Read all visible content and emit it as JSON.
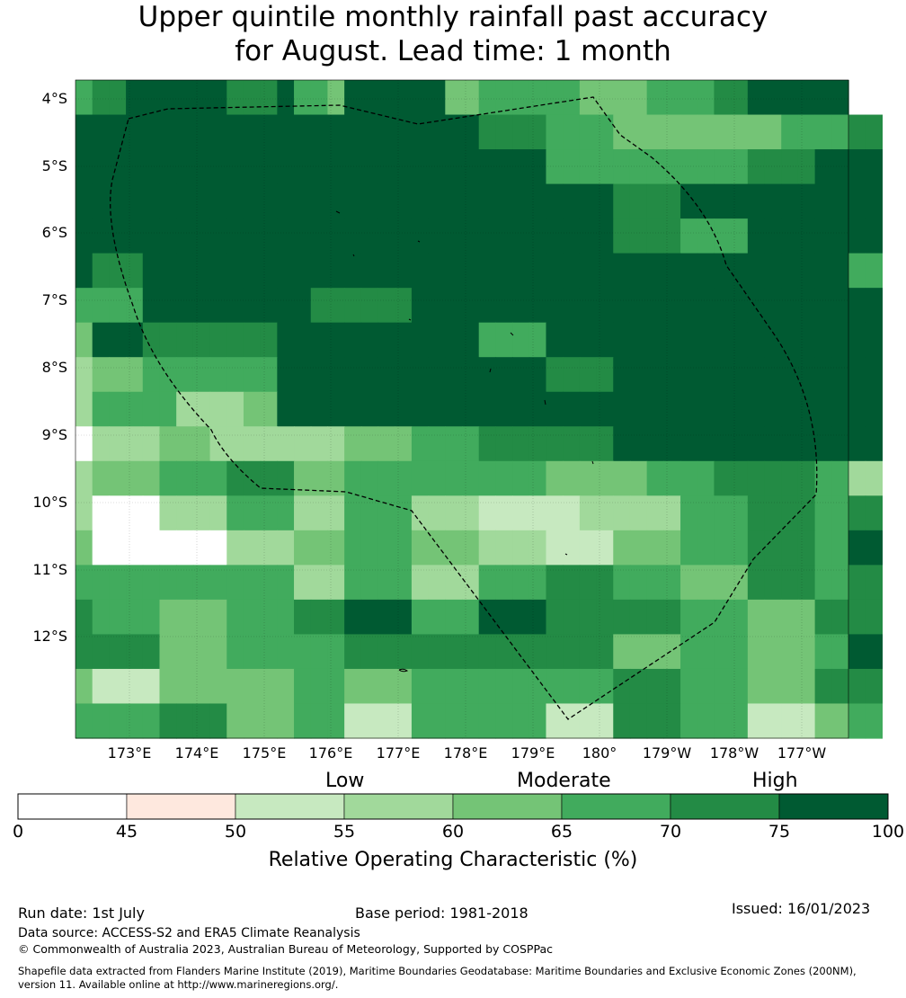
{
  "title_line1": "Upper quintile monthly rainfall past accuracy",
  "title_line2": "for August. Lead time: 1 month",
  "map": {
    "lat_labels": [
      "4°S",
      "5°S",
      "6°S",
      "7°S",
      "8°S",
      "9°S",
      "10°S",
      "11°S",
      "12°S"
    ],
    "lon_labels": [
      "173°E",
      "174°E",
      "175°E",
      "176°E",
      "177°E",
      "178°E",
      "179°E",
      "180°",
      "179°W",
      "178°W",
      "177°W"
    ],
    "grid_rows": [
      "4 5 5 6 6 6 6 6 6 5 5 5 6 4 4 3 6 6 6 6 6 6 3 3 4 4 4 4 4 4 3 3 3 3 4 4 4 4 5 5 6 6 6 6 6 6",
      "6 6 6 6 6 6 6 6 6 6 6 6 6 6 6 6 6 6 6 6 6 6 6 6 5 5 5 5 4 4 4 4 3 3 3 3 3 3 3 3 3 3 4 4 4 4 5 5",
      "6 6 6 6 6 6 6 6 6 6 6 6 6 6 6 6 6 6 6 6 6 6 6 6 6 6 6 6 4 4 4 4 4 4 4 4 4 4 4 4 5 5 5 5 6 6 6 6",
      "6 6 6 6 6 6 6 6 6 6 6 6 6 6 6 6 6 6 6 6 6 6 6 6 6 6 6 6 6 6 6 6 5 5 5 5 6 6 6 6 6 6 6 6 6 6 6 6",
      "6 6 6 6 6 6 6 6 6 6 6 6 6 6 6 6 6 6 6 6 6 6 6 6 6 6 6 6 6 6 6 6 5 5 5 5 4 4 4 4 6 6 6 6 6 6 6 6",
      "6 5 5 5 6 6 6 6 6 6 6 6 6 6 6 6 6 6 6 6 6 6 6 6 6 6 6 6 6 6 6 6 6 6 6 6 6 6 6 6 6 6 6 6 6 6 4 4",
      "4 4 4 4 6 6 6 6 6 6 6 6 6 6 5 5 5 5 5 5 6 6 6 6 6 6 6 6 6 6 6 6 6 6 6 6 6 6 6 6 6 6 6 6 6 6 6 6",
      "3 6 6 6 5 5 5 5 5 5 5 5 6 6 6 6 6 6 6 6 6 6 6 6 4 4 4 4 6 6 6 6 6 6 6 6 6 6 6 6 6 6 6 6 6 6 6 6",
      "2 3 3 3 4 4 4 4 4 4 4 4 6 6 6 6 6 6 6 6 6 6 6 6 6 6 6 6 5 5 5 5 6 6 6 6 6 6 6 6 6 6 6 6 6 6 6 6",
      "2 4 4 4 4 4 2 2 2 2 3 3 6 6 6 6 6 6 6 6 6 6 6 6 6 6 6 6 6 6 6 6 6 6 6 6 6 6 6 6 6 6 6 6 6 6 6 6",
      "0 2 2 2 2 3 3 3 2 2 2 2 2 2 2 2 3 3 3 3 4 4 4 4 5 5 5 5 5 5 5 5 6 6 6 6 6 6 6 6 6 6 6 6 6 6 6 6",
      "2 3 3 3 3 4 4 4 4 5 5 5 5 3 3 3 4 4 4 4 4 4 4 4 4 4 4 4 3 3 3 3 3 3 4 4 4 4 5 5 5 5 5 5 4 4 2 2",
      "2 0 0 0 0 2 2 2 2 4 4 4 4 2 2 2 4 4 4 4 2 2 2 2 1 1 1 1 1 1 2 2 2 2 2 2 4 4 4 4 5 5 5 5 4 4 5 5",
      "3 0 0 0 0 0 0 0 0 2 2 2 2 3 3 3 4 4 4 4 3 3 3 3 2 2 2 2 1 1 1 1 3 3 3 3 4 4 4 4 5 5 5 5 4 4 6 6",
      "4 4 4 4 4 4 4 4 4 4 4 4 4 2 2 2 4 4 4 4 2 2 2 2 4 4 4 4 5 5 5 5 4 4 4 4 3 3 3 3 5 5 5 5 4 4 5 5",
      "5 4 4 4 4 3 3 3 3 4 4 4 4 5 5 5 6 6 6 6 4 4 4 4 6 6 6 6 5 5 5 5 5 5 5 5 4 4 4 4 3 3 3 3 5 5 5 5",
      "5 5 5 5 5 3 3 3 3 4 4 4 4 4 4 4 5 5 5 5 5 5 5 5 5 5 5 5 5 5 5 5 3 3 3 3 4 4 4 4 3 3 3 3 4 4 6 6",
      "3 1 1 1 1 3 3 3 3 3 3 3 3 4 4 4 3 3 3 3 4 4 4 4 4 4 4 4 4 4 4 4 5 5 5 5 4 4 4 4 3 3 3 3 5 5 5 5",
      "4 4 4 4 4 5 5 5 5 3 3 3 3 4 4 4 1 1 1 1 4 4 4 4 4 4 4 4 1 1 1 1 5 5 5 5 4 4 4 4 1 1 1 1 3 3 4 4"
    ],
    "grid_colors": [
      "#ffffff",
      "#c7e9c0",
      "#a1d99b",
      "#74c476",
      "#41ab5d",
      "#238b45",
      "#005a32"
    ],
    "eez_color": "#000000"
  },
  "categories": {
    "low": "Low",
    "moderate": "Moderate",
    "high": "High"
  },
  "colorbar": {
    "ticks": [
      "0",
      "45",
      "50",
      "55",
      "60",
      "65",
      "70",
      "75",
      "100"
    ],
    "colors": [
      "#ffffff",
      "#fee8de",
      "#c7e9c0",
      "#a1d99b",
      "#74c476",
      "#41ab5d",
      "#238b45",
      "#005a32"
    ],
    "label": "Relative Operating Characteristic (%)"
  },
  "footer": {
    "run_date": "Run date: 1st July",
    "base_period": "Base period: 1981-2018",
    "issued": "Issued: 16/01/2023",
    "data_source": "Data source: ACCESS-S2 and ERA5 Climate Reanalysis",
    "copyright": "© Commonwealth of Australia 2023, Australian Bureau of Meteorology, Supported by COSPPac",
    "shapefile_line1": "Shapefile data extracted from Flanders Marine Institute (2019), Maritime Boundaries Geodatabase: Maritime Boundaries and Exclusive Economic Zones (200NM),",
    "shapefile_line2": "version 11. Available online at http://www.marineregions.org/."
  }
}
